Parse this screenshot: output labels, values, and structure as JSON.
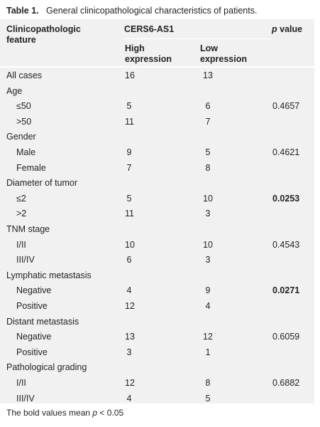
{
  "caption": {
    "label": "Table 1.",
    "text": "General clinicopathological characteristics of patients."
  },
  "header": {
    "feature_col": "Clinicopathologic feature",
    "group_col": "CERS6-AS1",
    "high_col": "High expression",
    "low_col": "Low expression",
    "p_symbol": "p",
    "p_word": "value"
  },
  "rows": [
    {
      "label": "All cases",
      "indent": false,
      "high": "16",
      "low": "13",
      "p": "",
      "bold": false
    },
    {
      "label": "Age",
      "indent": false,
      "high": "",
      "low": "",
      "p": "",
      "bold": false
    },
    {
      "label": "≤50",
      "indent": true,
      "high": "5",
      "low": "6",
      "p": "0.4657",
      "bold": false
    },
    {
      "label": ">50",
      "indent": true,
      "high": "11",
      "low": "7",
      "p": "",
      "bold": false
    },
    {
      "label": "Gender",
      "indent": false,
      "high": "",
      "low": "",
      "p": "",
      "bold": false
    },
    {
      "label": "Male",
      "indent": true,
      "high": "9",
      "low": "5",
      "p": "0.4621",
      "bold": false
    },
    {
      "label": "Female",
      "indent": true,
      "high": "7",
      "low": "8",
      "p": "",
      "bold": false
    },
    {
      "label": "Diameter of tumor",
      "indent": false,
      "high": "",
      "low": "",
      "p": "",
      "bold": false
    },
    {
      "label": "≤2",
      "indent": true,
      "high": "5",
      "low": "10",
      "p": "0.0253",
      "bold": true
    },
    {
      "label": ">2",
      "indent": true,
      "high": "11",
      "low": "3",
      "p": "",
      "bold": false
    },
    {
      "label": "TNM stage",
      "indent": false,
      "high": "",
      "low": "",
      "p": "",
      "bold": false
    },
    {
      "label": "I/II",
      "indent": true,
      "high": "10",
      "low": "10",
      "p": "0.4543",
      "bold": false
    },
    {
      "label": "III/IV",
      "indent": true,
      "high": "6",
      "low": "3",
      "p": "",
      "bold": false
    },
    {
      "label": "Lymphatic metastasis",
      "indent": false,
      "high": "",
      "low": "",
      "p": "",
      "bold": false
    },
    {
      "label": "Negative",
      "indent": true,
      "high": "4",
      "low": "9",
      "p": "0.0271",
      "bold": true
    },
    {
      "label": "Positive",
      "indent": true,
      "high": "12",
      "low": "4",
      "p": "",
      "bold": false
    },
    {
      "label": "Distant metastasis",
      "indent": false,
      "high": "",
      "low": "",
      "p": "",
      "bold": false
    },
    {
      "label": "Negative",
      "indent": true,
      "high": "13",
      "low": "12",
      "p": "0.6059",
      "bold": false
    },
    {
      "label": "Positive",
      "indent": true,
      "high": "3",
      "low": "1",
      "p": "",
      "bold": false
    },
    {
      "label": "Pathological grading",
      "indent": false,
      "high": "",
      "low": "",
      "p": "",
      "bold": false
    },
    {
      "label": "I/II",
      "indent": true,
      "high": "12",
      "low": "8",
      "p": "0.6882",
      "bold": false
    },
    {
      "label": "III/IV",
      "indent": true,
      "high": "4",
      "low": "5",
      "p": "",
      "bold": false
    }
  ],
  "footnote": {
    "before": "The bold values mean ",
    "p_symbol": "p",
    "after": " < 0.05"
  }
}
